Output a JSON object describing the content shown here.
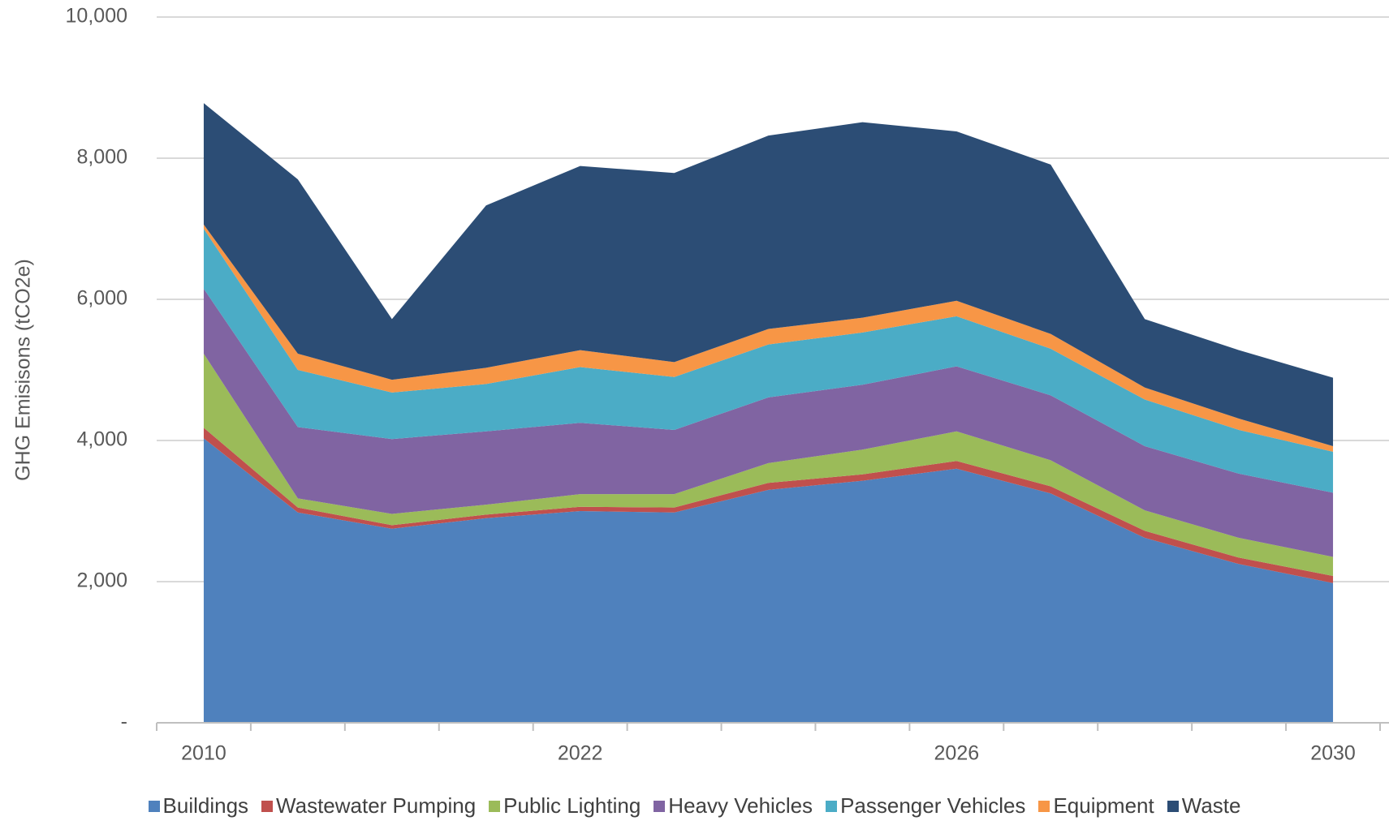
{
  "chart_data": {
    "type": "stacked_area",
    "y_label": "GHG Emisisons (tCO2e)",
    "categories": [
      "2010",
      null,
      null,
      null,
      "2022",
      null,
      null,
      null,
      "2026",
      null,
      null,
      null,
      "2030"
    ],
    "series": [
      {
        "name": "Buildings",
        "color": "#4f81bd",
        "values": [
          4030,
          2980,
          2750,
          2900,
          3000,
          2980,
          3300,
          3430,
          3600,
          3250,
          2620,
          2250,
          1980
        ]
      },
      {
        "name": "Wastewater Pumping",
        "color": "#c0504d",
        "values": [
          150,
          70,
          50,
          50,
          60,
          70,
          100,
          90,
          110,
          100,
          100,
          90,
          100
        ]
      },
      {
        "name": "Public Lighting",
        "color": "#9bbb59",
        "values": [
          1050,
          130,
          160,
          140,
          180,
          190,
          280,
          350,
          420,
          370,
          290,
          280,
          270
        ]
      },
      {
        "name": "Heavy Vehicles",
        "color": "#8064a2",
        "values": [
          920,
          1010,
          1060,
          1040,
          1010,
          910,
          930,
          920,
          920,
          920,
          910,
          910,
          910
        ]
      },
      {
        "name": "Passenger Vehicles",
        "color": "#4bacc6",
        "values": [
          850,
          810,
          660,
          670,
          790,
          750,
          750,
          740,
          710,
          660,
          660,
          620,
          580
        ]
      },
      {
        "name": "Equipment",
        "color": "#f79646",
        "values": [
          60,
          230,
          180,
          230,
          240,
          210,
          220,
          210,
          220,
          210,
          170,
          160,
          80
        ]
      },
      {
        "name": "Waste",
        "color": "#2c4d75",
        "values": [
          1720,
          2470,
          860,
          2300,
          2610,
          2680,
          2740,
          2770,
          2400,
          2400,
          970,
          970,
          970
        ]
      }
    ],
    "ylim": [
      0,
      10000
    ],
    "yticks": [
      {
        "value": 0,
        "label": "-"
      },
      {
        "value": 2000,
        "label": "2,000"
      },
      {
        "value": 4000,
        "label": "4,000"
      },
      {
        "value": 6000,
        "label": "6,000"
      },
      {
        "value": 8000,
        "label": "8,000"
      },
      {
        "value": 10000,
        "label": "10,000"
      }
    ],
    "grid": true
  }
}
